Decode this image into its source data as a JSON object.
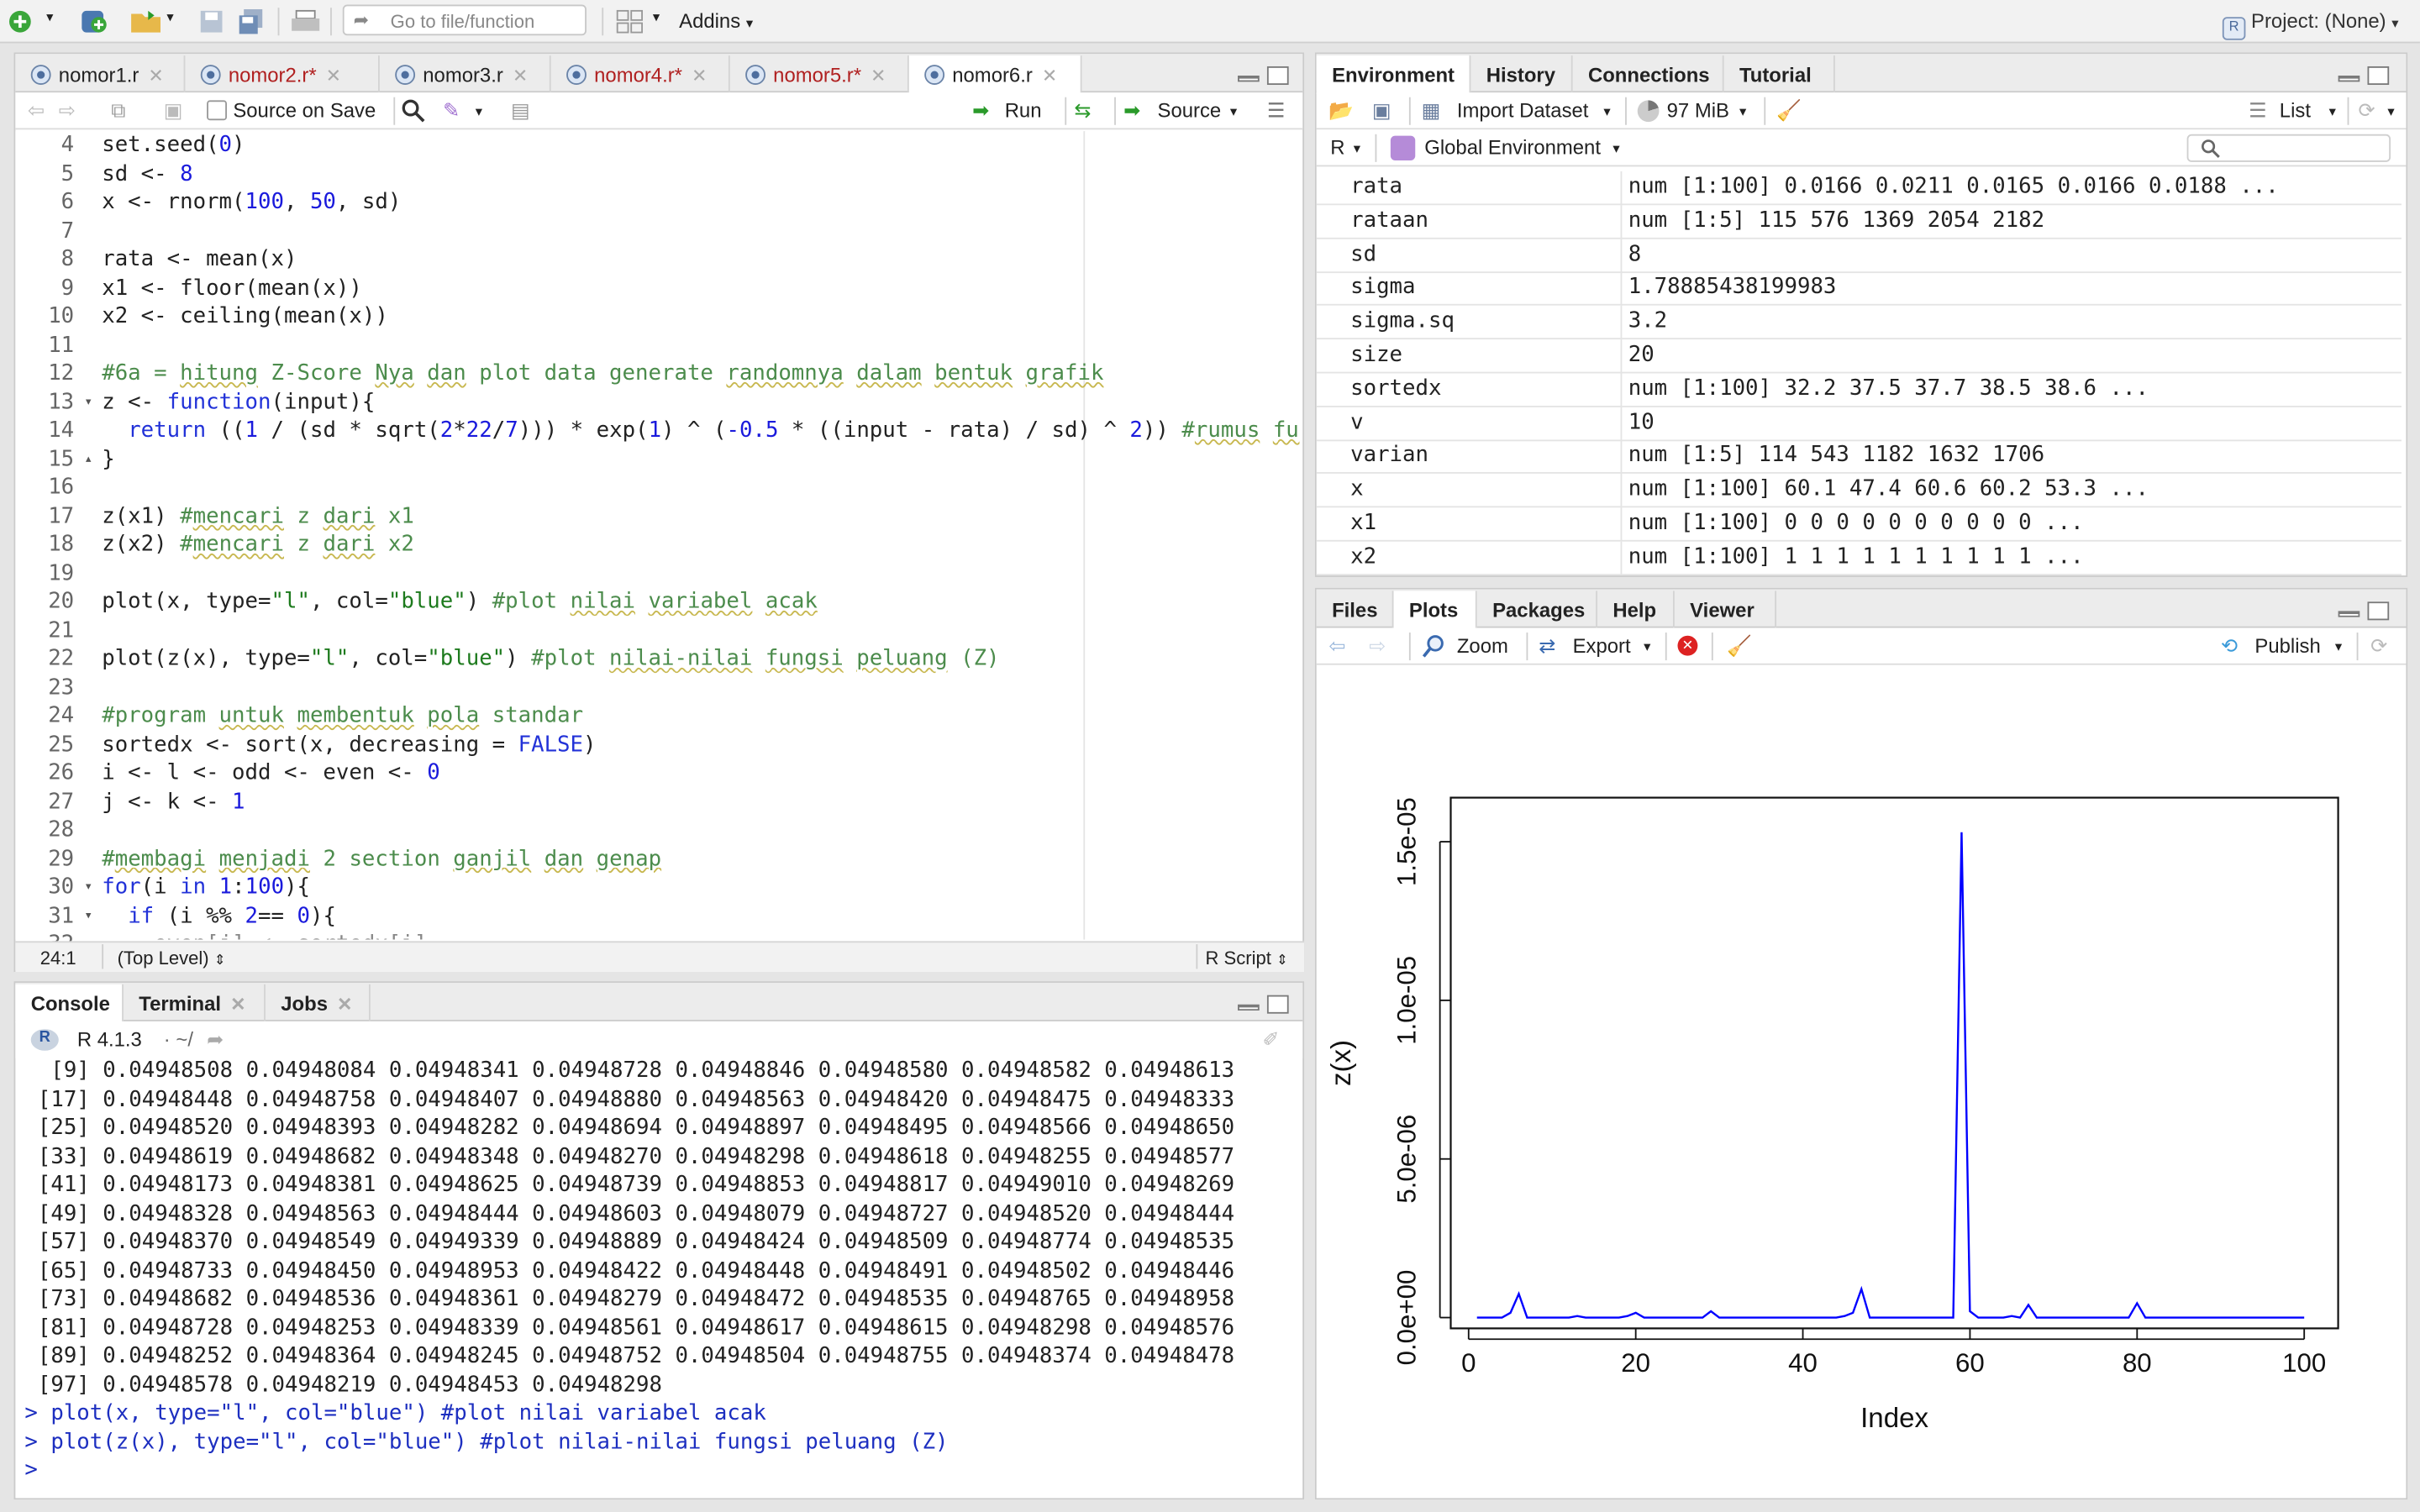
{
  "toolbar": {
    "go_to_file_placeholder": "Go to file/function",
    "addins_label": "Addins",
    "project_label": "Project: (None)"
  },
  "editor": {
    "tabs": [
      {
        "label": "nomor1.r",
        "unsaved": false
      },
      {
        "label": "nomor2.r*",
        "unsaved": true
      },
      {
        "label": "nomor3.r",
        "unsaved": false
      },
      {
        "label": "nomor4.r*",
        "unsaved": true
      },
      {
        "label": "nomor5.r*",
        "unsaved": true
      },
      {
        "label": "nomor6.r",
        "unsaved": false
      }
    ],
    "source_on_save_label": "Source on Save",
    "run_label": "Run",
    "source_label": "Source",
    "line_numbers": [
      "4",
      "5",
      "6",
      "7",
      "8",
      "9",
      "10",
      "11",
      "12",
      "13",
      "14",
      "15",
      "16",
      "17",
      "18",
      "19",
      "20",
      "21",
      "22",
      "23",
      "24",
      "25",
      "26",
      "27",
      "28",
      "29",
      "30",
      "31",
      "32"
    ],
    "cursor_position": "24:1",
    "scope": "(Top Level)",
    "file_type": "R Script"
  },
  "console": {
    "tabs": [
      "Console",
      "Terminal",
      "Jobs"
    ],
    "r_version": "R 4.1.3",
    "working_dir": "~/",
    "output_lines": [
      "  [9] 0.04948508 0.04948084 0.04948341 0.04948728 0.04948846 0.04948580 0.04948582 0.04948613",
      " [17] 0.04948448 0.04948758 0.04948407 0.04948880 0.04948563 0.04948420 0.04948475 0.04948333",
      " [25] 0.04948520 0.04948393 0.04948282 0.04948694 0.04948897 0.04948495 0.04948566 0.04948650",
      " [33] 0.04948619 0.04948682 0.04948348 0.04948270 0.04948298 0.04948618 0.04948255 0.04948577",
      " [41] 0.04948173 0.04948381 0.04948625 0.04948739 0.04948853 0.04948817 0.04949010 0.04948269",
      " [49] 0.04948328 0.04948563 0.04948444 0.04948603 0.04948079 0.04948727 0.04948520 0.04948444",
      " [57] 0.04948370 0.04948549 0.04949339 0.04948889 0.04948424 0.04948509 0.04948774 0.04948535",
      " [65] 0.04948733 0.04948450 0.04948953 0.04948422 0.04948448 0.04948491 0.04948502 0.04948446",
      " [73] 0.04948682 0.04948536 0.04948361 0.04948279 0.04948472 0.04948535 0.04948765 0.04948958",
      " [81] 0.04948728 0.04948253 0.04948339 0.04948561 0.04948617 0.04948615 0.04948298 0.04948576",
      " [89] 0.04948252 0.04948364 0.04948245 0.04948752 0.04948504 0.04948755 0.04948374 0.04948478",
      " [97] 0.04948578 0.04948219 0.04948453 0.04948298"
    ],
    "command_lines": [
      "> plot(x, type=\"l\", col=\"blue\") #plot nilai variabel acak",
      "> plot(z(x), type=\"l\", col=\"blue\") #plot nilai-nilai fungsi peluang (Z)",
      "> "
    ]
  },
  "environment": {
    "tabs": [
      "Environment",
      "History",
      "Connections",
      "Tutorial"
    ],
    "import_dataset_label": "Import Dataset",
    "memory_label": "97 MiB",
    "list_label": "List",
    "language_label": "R",
    "scope_label": "Global Environment",
    "rows": [
      {
        "name": "rata",
        "value": "num [1:100] 0.0166 0.0211 0.0165 0.0166 0.0188 ..."
      },
      {
        "name": "rataan",
        "value": "num [1:5] 115 576 1369 2054 2182"
      },
      {
        "name": "sd",
        "value": "8"
      },
      {
        "name": "sigma",
        "value": "1.78885438199983"
      },
      {
        "name": "sigma.sq",
        "value": "3.2"
      },
      {
        "name": "size",
        "value": "20"
      },
      {
        "name": "sortedx",
        "value": "num [1:100] 32.2 37.5 37.7 38.5 38.6 ..."
      },
      {
        "name": "v",
        "value": "10"
      },
      {
        "name": "varian",
        "value": "num [1:5] 114 543 1182 1632 1706"
      },
      {
        "name": "x",
        "value": "num [1:100] 60.1 47.4 60.6 60.2 53.3 ..."
      },
      {
        "name": "x1",
        "value": "num [1:100] 0 0 0 0 0 0 0 0 0 0 ..."
      },
      {
        "name": "x2",
        "value": "num [1:100] 1 1 1 1 1 1 1 1 1 1 ..."
      }
    ]
  },
  "files_pane": {
    "tabs": [
      "Files",
      "Plots",
      "Packages",
      "Help",
      "Viewer"
    ],
    "zoom_label": "Zoom",
    "export_label": "Export",
    "publish_label": "Publish"
  },
  "chart_data": {
    "type": "line",
    "title": "",
    "xlabel": "Index",
    "ylabel": "z(x)",
    "xlim": [
      1,
      100
    ],
    "ylim": [
      0,
      1.6e-05
    ],
    "x_ticks": [
      "0",
      "20",
      "40",
      "60",
      "80",
      "100"
    ],
    "y_ticks": [
      "0.0e+00",
      "5.0e-06",
      "1.0e-05",
      "1.5e-05"
    ],
    "line_color": "#0000ff",
    "series": [
      {
        "values": [
          0.0,
          0.0,
          0.0,
          0.0,
          1.5e-07,
          7.5e-07,
          0.0,
          0.0,
          0.0,
          0.0,
          0.0,
          0.0,
          5e-08,
          0.0,
          0.0,
          0.0,
          0.0,
          0.0,
          5e-08,
          1.5e-07,
          0.0,
          0.0,
          0.0,
          0.0,
          0.0,
          0.0,
          0.0,
          0.0,
          2e-07,
          0.0,
          0.0,
          0.0,
          0.0,
          0.0,
          0.0,
          0.0,
          0.0,
          0.0,
          0.0,
          0.0,
          0.0,
          0.0,
          0.0,
          0.0,
          5e-08,
          1.5e-07,
          9e-07,
          0.0,
          0.0,
          0.0,
          0.0,
          0.0,
          0.0,
          0.0,
          0.0,
          0.0,
          0.0,
          0.0,
          1.53e-05,
          2e-07,
          0.0,
          0.0,
          0.0,
          0.0,
          5e-08,
          0.0,
          4e-07,
          0.0,
          0.0,
          0.0,
          0.0,
          0.0,
          0.0,
          0.0,
          0.0,
          0.0,
          0.0,
          0.0,
          0.0,
          4.5e-07,
          0.0,
          0.0,
          0.0,
          0.0,
          0.0,
          0.0,
          0.0,
          0.0,
          0.0,
          0.0,
          0.0,
          0.0,
          0.0,
          0.0,
          0.0,
          0.0,
          0.0,
          0.0,
          0.0,
          0.0
        ]
      }
    ]
  }
}
